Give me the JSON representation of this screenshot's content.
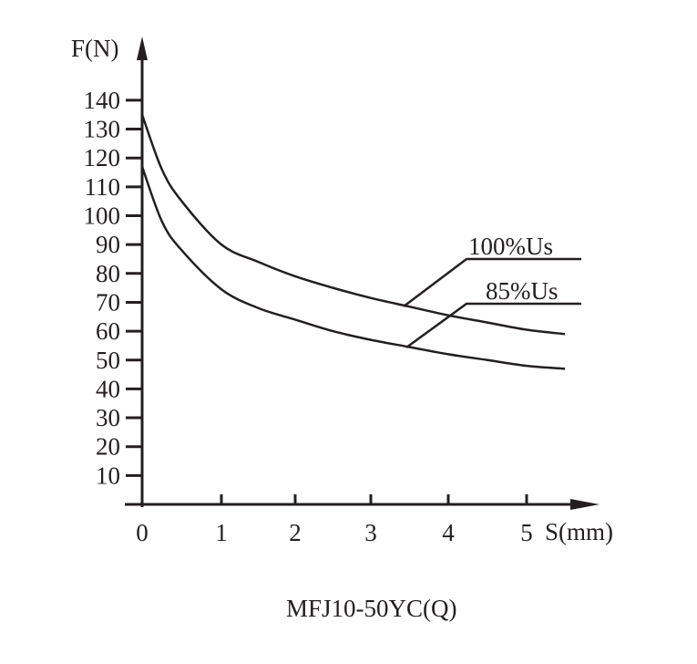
{
  "chart_data": {
    "type": "line",
    "title": "MFJ10-50YC(Q)",
    "xlabel": "S(mm)",
    "ylabel": "F(N)",
    "xlim": [
      0,
      5.4
    ],
    "ylim": [
      0,
      140
    ],
    "x_ticks": [
      "0",
      "1",
      "2",
      "3",
      "4",
      "5"
    ],
    "y_ticks": [
      "10",
      "20",
      "30",
      "40",
      "50",
      "60",
      "70",
      "80",
      "90",
      "100",
      "110",
      "120",
      "130",
      "140"
    ],
    "grid": false,
    "legend": "annotation leader lines on right",
    "series": [
      {
        "name": "100%Us",
        "x": [
          0,
          0.25,
          0.5,
          1.0,
          1.5,
          2.0,
          2.5,
          3.0,
          3.5,
          4.0,
          4.5,
          5.0,
          5.4
        ],
        "values": [
          135,
          116,
          105,
          90,
          84,
          79,
          75,
          71.5,
          68.5,
          65.5,
          63,
          60.5,
          59
        ]
      },
      {
        "name": "85%Us",
        "x": [
          0,
          0.25,
          0.5,
          1.0,
          1.5,
          2.0,
          2.5,
          3.0,
          3.5,
          4.0,
          4.5,
          5.0,
          5.4
        ],
        "values": [
          117,
          98,
          88,
          74.5,
          68,
          64,
          60,
          57,
          54.5,
          52,
          50,
          48,
          47
        ]
      }
    ]
  },
  "labels": {
    "y_axis": "F(N)",
    "x_axis": "S(mm)",
    "series1": "100%Us",
    "series2": "85%Us",
    "caption": "MFJ10-50YC(Q)"
  }
}
